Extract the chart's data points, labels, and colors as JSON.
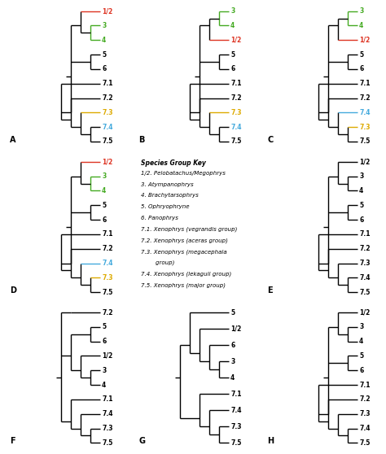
{
  "background": "#ffffff",
  "lw": 1.0,
  "label_fontsize": 5.5,
  "panel_label_fontsize": 7,
  "key_title_fontsize": 5.5,
  "key_body_fontsize": 5.0,
  "trees": {
    "A": {
      "order": [
        "1/2",
        "3",
        "4",
        "5",
        "6",
        "7.1",
        "7.2",
        "7.3",
        "7.4",
        "7.5"
      ],
      "colors": {
        "1/2": "#dd3322",
        "3": "#44aa22",
        "4": "#44aa22",
        "5": "#000000",
        "6": "#000000",
        "7.1": "#000000",
        "7.2": "#000000",
        "7.3": "#ddaa00",
        "7.4": "#44aadd",
        "7.5": "#000000"
      },
      "topology": "A"
    },
    "B": {
      "order": [
        "3",
        "4",
        "1/2",
        "5",
        "6",
        "7.1",
        "7.2",
        "7.3",
        "7.4",
        "7.5"
      ],
      "colors": {
        "3": "#44aa22",
        "4": "#44aa22",
        "1/2": "#dd3322",
        "5": "#000000",
        "6": "#000000",
        "7.1": "#000000",
        "7.2": "#000000",
        "7.3": "#ddaa00",
        "7.4": "#44aadd",
        "7.5": "#000000"
      },
      "topology": "B"
    },
    "C": {
      "order": [
        "3",
        "4",
        "1/2",
        "5",
        "6",
        "7.1",
        "7.2",
        "7.4",
        "7.3",
        "7.5"
      ],
      "colors": {
        "3": "#44aa22",
        "4": "#44aa22",
        "1/2": "#dd3322",
        "5": "#000000",
        "6": "#000000",
        "7.1": "#000000",
        "7.2": "#000000",
        "7.3": "#ddaa00",
        "7.4": "#44aadd",
        "7.5": "#000000"
      },
      "topology": "C"
    },
    "D": {
      "order": [
        "1/2",
        "3",
        "4",
        "5",
        "6",
        "7.1",
        "7.2",
        "7.4",
        "7.3",
        "7.5"
      ],
      "colors": {
        "1/2": "#dd3322",
        "3": "#44aa22",
        "4": "#44aa22",
        "5": "#000000",
        "6": "#000000",
        "7.1": "#000000",
        "7.2": "#000000",
        "7.3": "#ddaa00",
        "7.4": "#44aadd",
        "7.5": "#000000"
      },
      "topology": "D"
    },
    "E": {
      "order": [
        "1/2",
        "3",
        "4",
        "5",
        "6",
        "7.1",
        "7.2",
        "7.3",
        "7.4",
        "7.5"
      ],
      "colors": {
        "1/2": "#000000",
        "3": "#000000",
        "4": "#000000",
        "5": "#000000",
        "6": "#000000",
        "7.1": "#000000",
        "7.2": "#000000",
        "7.3": "#000000",
        "7.4": "#000000",
        "7.5": "#000000"
      },
      "topology": "E"
    },
    "F": {
      "order": [
        "7.2",
        "5",
        "6",
        "1/2",
        "3",
        "4",
        "7.1",
        "7.4",
        "7.3",
        "7.5"
      ],
      "colors": {
        "1/2": "#000000",
        "3": "#000000",
        "4": "#000000",
        "5": "#000000",
        "6": "#000000",
        "7.1": "#000000",
        "7.2": "#000000",
        "7.3": "#000000",
        "7.4": "#000000",
        "7.5": "#000000"
      },
      "topology": "F"
    },
    "G": {
      "order": [
        "5",
        "1/2",
        "6",
        "3",
        "4",
        "7.1",
        "7.4",
        "7.3",
        "7.5"
      ],
      "colors": {
        "1/2": "#000000",
        "3": "#000000",
        "4": "#000000",
        "5": "#000000",
        "6": "#000000",
        "7.1": "#000000",
        "7.2": "#000000",
        "7.3": "#000000",
        "7.4": "#000000",
        "7.5": "#000000"
      },
      "topology": "G"
    },
    "H": {
      "order": [
        "1/2",
        "3",
        "4",
        "5",
        "6",
        "7.1",
        "7.2",
        "7.3",
        "7.4",
        "7.5"
      ],
      "colors": {
        "1/2": "#000000",
        "3": "#000000",
        "4": "#000000",
        "5": "#000000",
        "6": "#000000",
        "7.1": "#000000",
        "7.2": "#000000",
        "7.3": "#000000",
        "7.4": "#000000",
        "7.5": "#000000"
      },
      "topology": "H"
    }
  },
  "key_title": "Species Group Key",
  "key_lines": [
    "1/2. Pelobatachus/Megophrys",
    "3. Atympanophrys",
    "4. Brachytarsophrys",
    "5. Ophryophryne",
    "6. Panophrys",
    "7.1. Xenophrys (vegrandis group)",
    "7.2. Xenophrys (aceras group)",
    "7.3. Xenophrys (megacephala",
    "        group)",
    "7.4. Xenophrys (lekaguli group)",
    "7.5. Xenophrys (major group)"
  ]
}
